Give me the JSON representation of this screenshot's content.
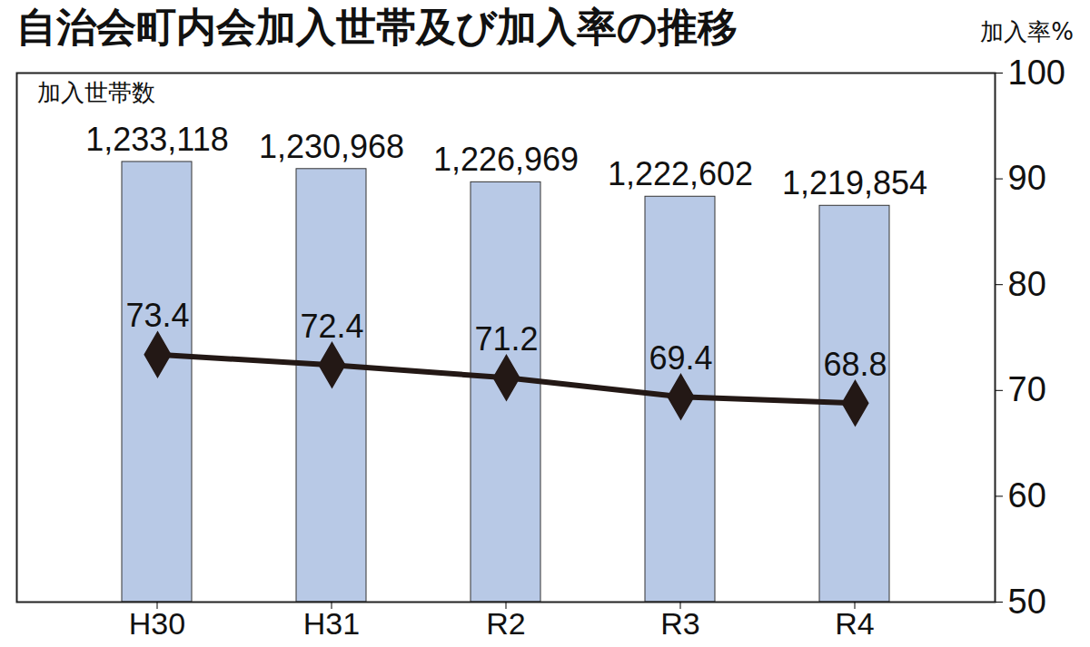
{
  "chart_data": {
    "type": "bar",
    "title": "自治会町内会加入世帯及び加入率の推移",
    "categories": [
      "H30",
      "H31",
      "R2",
      "R3",
      "R4"
    ],
    "series": [
      {
        "name": "加入世帯数",
        "type": "bar",
        "color": "#b8c9e6",
        "values": [
          1233118,
          1230968,
          1226969,
          1222602,
          1219854
        ],
        "value_labels": [
          "1,233,118",
          "1,230,968",
          "1,226,969",
          "1,222,602",
          "1,219,854"
        ]
      },
      {
        "name": "加入率%",
        "type": "line",
        "axis": "y2",
        "color": "#231815",
        "marker": "diamond",
        "values": [
          73.4,
          72.4,
          71.2,
          69.4,
          68.8
        ]
      }
    ],
    "ylim": [
      1100000,
      1260000
    ],
    "y2lim": [
      50,
      100
    ],
    "y2ticks": [
      50,
      60,
      70,
      80,
      90,
      100
    ],
    "data_labels": true,
    "grid": false
  }
}
